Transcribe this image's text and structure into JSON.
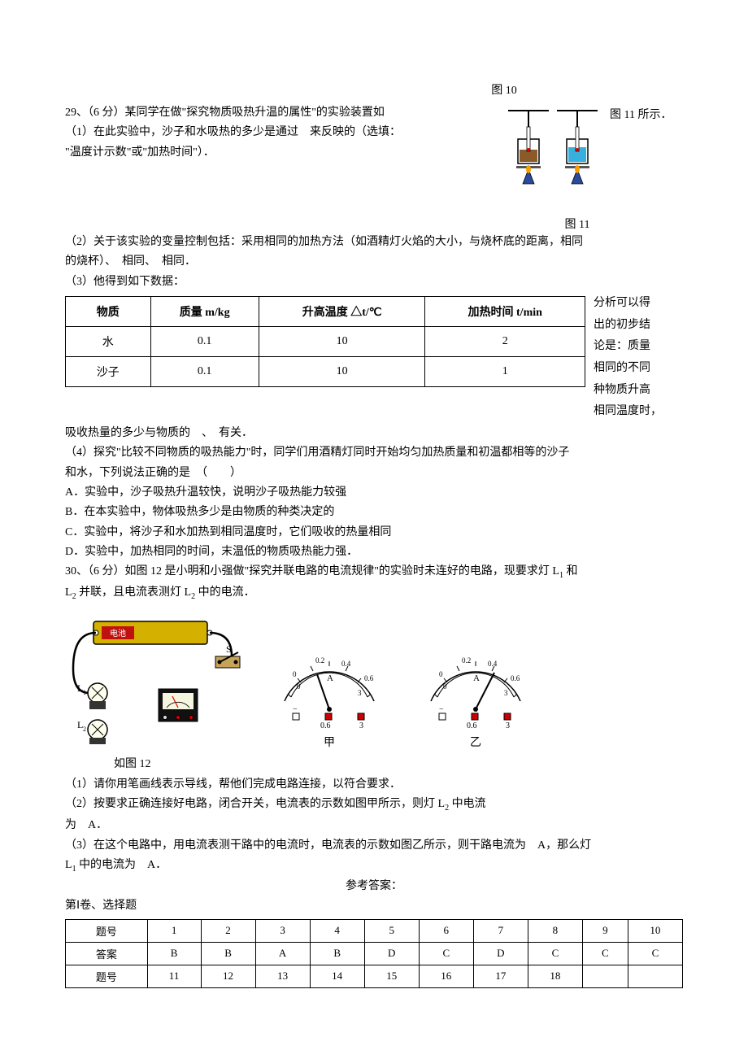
{
  "fig10_caption": "图 10",
  "q29": {
    "stem_line1a": "29、（6 分）某同学在做\"探究物质吸热升温的属性\"的实验装置如",
    "stem_line1b": "图 11 所示．",
    "stem_line2": "（1）在此实验中，沙子和水吸热的多少是通过　来反映的（选填：",
    "stem_line3": "\"温度计示数\"或\"加热时间\"）．",
    "fig11_caption": "图 11",
    "part2_line1": "（2）关于该实验的变量控制包括：采用相同的加热方法（如酒精灯火焰的大小，与烧杯底的距离，相同",
    "part2_line2": "的烧杯）、　相同、　相同．",
    "part3_intro": "（3）他得到如下数据：",
    "table": {
      "headers": [
        "物质",
        "质量 m/kg",
        "升高温度 △t/℃",
        "加热时间 t/min"
      ],
      "rows": [
        [
          "水",
          "0.1",
          "10",
          "2"
        ],
        [
          "沙子",
          "0.1",
          "10",
          "1"
        ]
      ],
      "col_widths": [
        "100px",
        "130px",
        "210px",
        "200px"
      ]
    },
    "side_text_lines": [
      "分析可以得",
      "出的初步结",
      "论是：质量",
      "相同的不同",
      "种物质升高",
      "相同温度时，"
    ],
    "after_table": "吸收热量的多少与物质的　、　有关．",
    "part4_line1": "（4）探究\"比较不同物质的吸热能力\"时，同学们用酒精灯同时开始均匀加热质量和初温都相等的沙子",
    "part4_line2": "和水，下列说法正确的是　（　　）",
    "optA": "A．实验中，沙子吸热升温较快，说明沙子吸热能力较强",
    "optB": "B．在本实验中，物体吸热多少是由物质的种类决定的",
    "optC": "C．实验中，将沙子和水加热到相同温度时，它们吸收的热量相同",
    "optD": "D．实验中，加热相同的时间，末温低的物质吸热能力强．"
  },
  "q30": {
    "stem_a": "30、（6 分）如图 12 是小明和小强做\"探究并联电路的电流规律\"的实验时未连好的电路，现要求灯 L",
    "stem_sub1": "1",
    "stem_b": " 和",
    "line2_a": "L",
    "line2_sub": "2",
    "line2_b": " 并联，且电流表测灯 L",
    "line2_sub2": "2",
    "line2_c": " 中的电流．",
    "meter_jia": "甲",
    "meter_yi": "乙",
    "fig12_caption": "如图 12",
    "part1": "（1）请你用笔画线表示导线，帮他们完成电路连接，以符合要求．",
    "part2_a": "（2）按要求正确连接好电路，闭合开关，电流表的示数如图甲所示，则灯 L",
    "part2_sub": "2",
    "part2_b": " 中电流",
    "part2_c": "为　A．",
    "part3_a": "（3）在这个电路中，用电流表测干路中的电流时，电流表的示数如图乙所示，则干路电流为　A，那么灯",
    "part3_b": "L",
    "part3_sub": "1",
    "part3_c": " 中的电流为　A．"
  },
  "answers": {
    "title": "参考答案：",
    "section": "第Ⅰ卷、选择题",
    "row1_label": "题号",
    "row1": [
      "1",
      "2",
      "3",
      "4",
      "5",
      "6",
      "7",
      "8",
      "9",
      "10"
    ],
    "row2_label": "答案",
    "row2": [
      "B",
      "B",
      "A",
      "B",
      "D",
      "C",
      "D",
      "C",
      "C",
      "C"
    ],
    "row3_label": "题号",
    "row3": [
      "11",
      "12",
      "13",
      "14",
      "15",
      "16",
      "17",
      "18",
      "",
      ""
    ]
  }
}
